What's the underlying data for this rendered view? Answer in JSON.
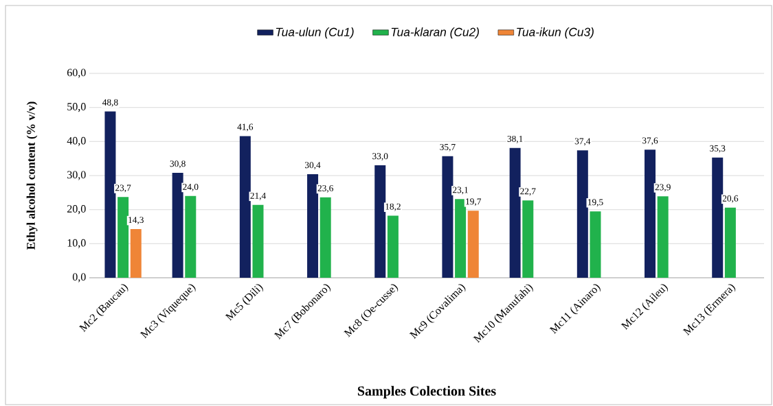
{
  "chart_data": {
    "type": "bar",
    "xlabel": "Samples Colection Sites",
    "ylabel": "Ethyl alcohol content (% v/v)",
    "categories": [
      "Mc2 (Baucau)",
      "Mc3 (Viqueque)",
      "Mc5 (Dili)",
      "Mc7 (Bobonaro)",
      "Mc8 (Oe-cusse)",
      "Mc9 (Covalima)",
      "Mc10 (Manufahi)",
      "Mc11 (Ainaro)",
      "Mc12 (Aileu)",
      "Mc13 (Ermera)"
    ],
    "series": [
      {
        "name": "Tua-ulun (Cu1)",
        "color": "#12215e",
        "values": [
          48.8,
          30.8,
          41.6,
          30.4,
          33.0,
          35.7,
          38.1,
          37.4,
          37.6,
          35.3
        ],
        "value_labels": [
          "48,8",
          "30,8",
          "41,6",
          "30,4",
          "33,0",
          "35,7",
          "38,1",
          "37,4",
          "37,6",
          "35,3"
        ]
      },
      {
        "name": "Tua-klaran (Cu2)",
        "color": "#21b24c",
        "values": [
          23.7,
          24.0,
          21.4,
          23.6,
          18.2,
          23.1,
          22.7,
          19.5,
          23.9,
          20.6
        ],
        "value_labels": [
          "23,7",
          "24,0",
          "21,4",
          "23,6",
          "18,2",
          "23,1",
          "22,7",
          "19,5",
          "23,9",
          "20,6"
        ]
      },
      {
        "name": "Tua-ikun (Cu3)",
        "color": "#ef8537",
        "values": [
          14.3,
          null,
          null,
          null,
          null,
          19.7,
          null,
          null,
          null,
          null
        ],
        "value_labels": [
          "14,3",
          null,
          null,
          null,
          null,
          "19,7",
          null,
          null,
          null,
          null
        ]
      }
    ],
    "ylim": [
      0,
      60
    ],
    "yticks": [
      {
        "value": 0,
        "label": "0,0"
      },
      {
        "value": 10,
        "label": "10,0"
      },
      {
        "value": 20,
        "label": "20,0"
      },
      {
        "value": 30,
        "label": "30,0"
      },
      {
        "value": 40,
        "label": "40,0"
      },
      {
        "value": 50,
        "label": "50,0"
      },
      {
        "value": 60,
        "label": "60,0"
      }
    ],
    "grid": "y",
    "legend": "top"
  }
}
